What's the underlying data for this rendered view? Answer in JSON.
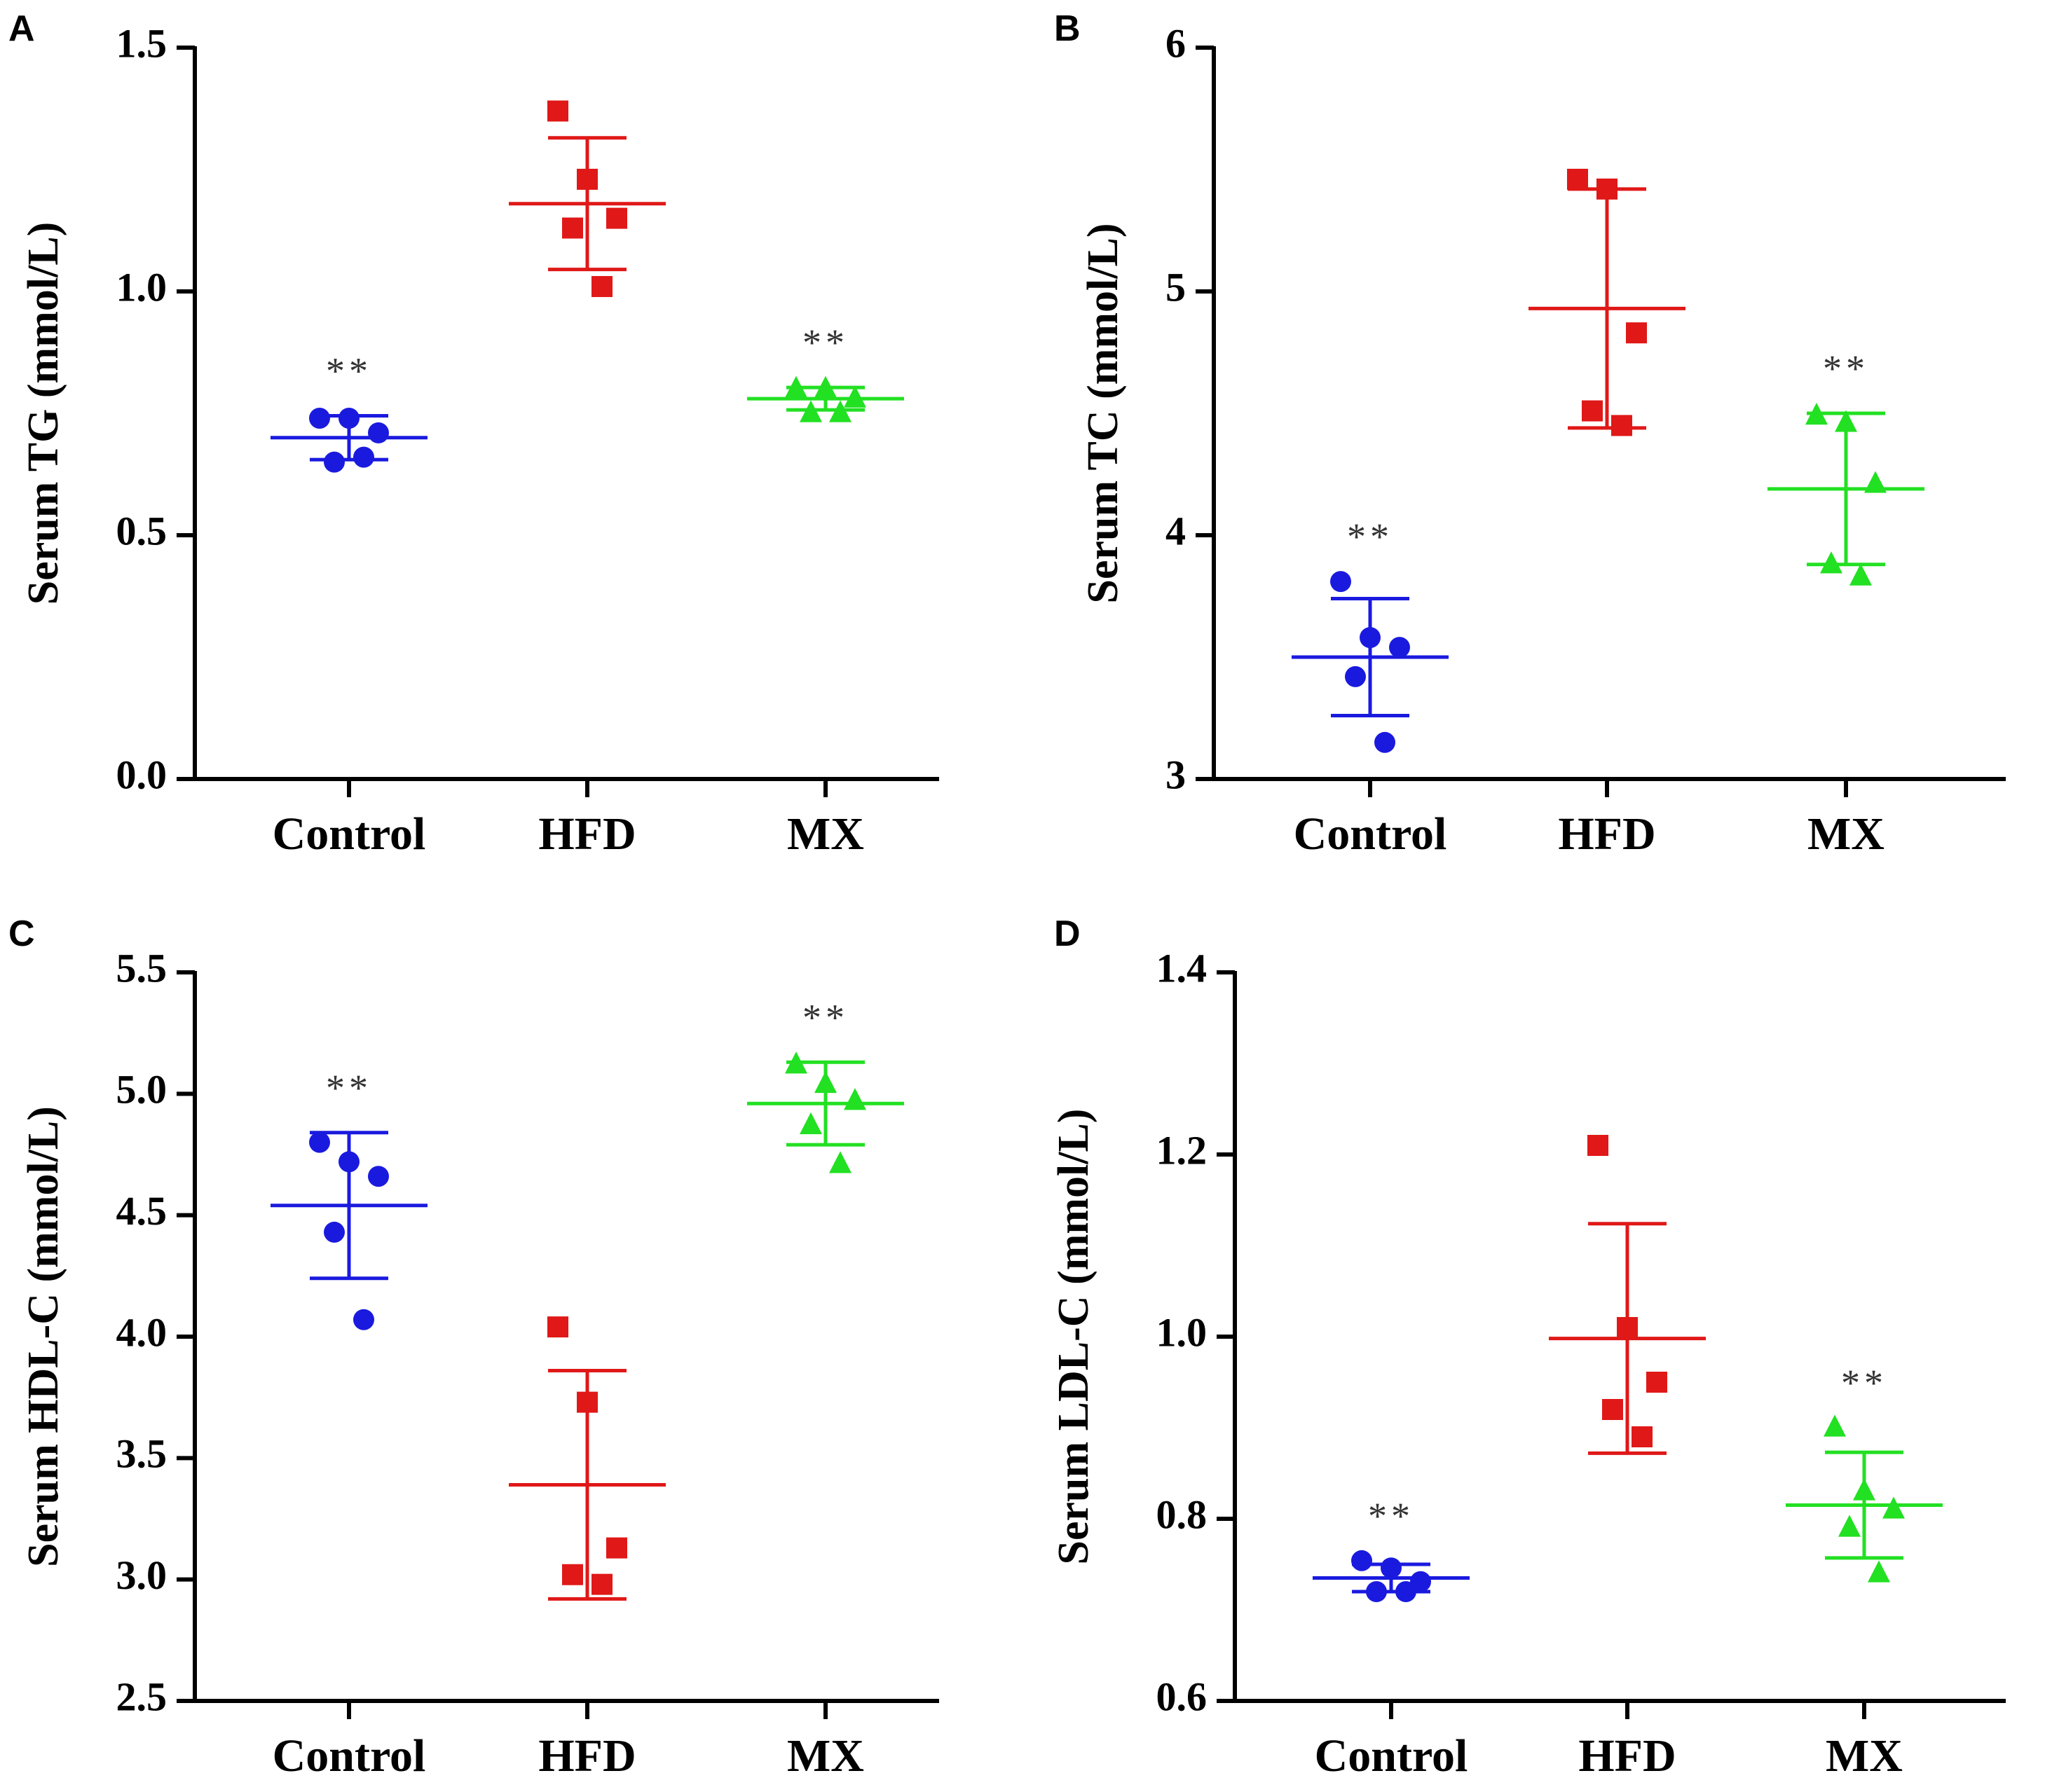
{
  "chart_data": [
    {
      "panel": "A",
      "type": "scatter",
      "ylabel": "Serum TG (mmol/L)",
      "ylim": [
        0,
        1.5
      ],
      "yticks": [
        0.0,
        0.5,
        1.0,
        1.5
      ],
      "ytick_labels": [
        "0.0",
        "0.5",
        "1.0",
        "1.5"
      ],
      "categories": [
        "Control",
        "HFD",
        "MX"
      ],
      "groups": [
        {
          "name": "Control",
          "color": "#1a1adf",
          "marker": "circle",
          "points": [
            0.74,
            0.74,
            0.71,
            0.65,
            0.66
          ],
          "mean": 0.7,
          "sd": 0.045,
          "sig": "**"
        },
        {
          "name": "HFD",
          "color": "#e01818",
          "marker": "square",
          "points": [
            1.37,
            1.23,
            1.15,
            1.13,
            1.01
          ],
          "mean": 1.18,
          "sd": 0.135,
          "sig": ""
        },
        {
          "name": "MX",
          "color": "#22e022",
          "marker": "triangle",
          "points": [
            0.8,
            0.8,
            0.78,
            0.75,
            0.75
          ],
          "mean": 0.78,
          "sd": 0.023,
          "sig": "**"
        }
      ]
    },
    {
      "panel": "B",
      "type": "scatter",
      "ylabel": "Serum TC (mmol/L)",
      "ylim": [
        3,
        6
      ],
      "yticks": [
        3,
        4,
        5,
        6
      ],
      "ytick_labels": [
        "3",
        "4",
        "5",
        "6"
      ],
      "categories": [
        "Control",
        "HFD",
        "MX"
      ],
      "groups": [
        {
          "name": "Control",
          "color": "#1a1adf",
          "marker": "circle",
          "points": [
            3.81,
            3.58,
            3.54,
            3.42,
            3.15
          ],
          "mean": 3.5,
          "sd": 0.24,
          "sig": "**"
        },
        {
          "name": "HFD",
          "color": "#e01818",
          "marker": "square",
          "points": [
            5.46,
            5.42,
            4.83,
            4.51,
            4.45
          ],
          "mean": 4.93,
          "sd": 0.49,
          "sig": ""
        },
        {
          "name": "MX",
          "color": "#22e022",
          "marker": "triangle",
          "points": [
            4.49,
            4.46,
            4.21,
            3.88,
            3.83
          ],
          "mean": 4.19,
          "sd": 0.31,
          "sig": "**"
        }
      ]
    },
    {
      "panel": "C",
      "type": "scatter",
      "ylabel": "Serum HDL-C (mmol/L)",
      "ylim": [
        2.5,
        5.5
      ],
      "yticks": [
        2.5,
        3.0,
        3.5,
        4.0,
        4.5,
        5.0,
        5.5
      ],
      "ytick_labels": [
        "2.5",
        "3.0",
        "3.5",
        "4.0",
        "4.5",
        "5.0",
        "5.5"
      ],
      "categories": [
        "Control",
        "HFD",
        "MX"
      ],
      "groups": [
        {
          "name": "Control",
          "color": "#1a1adf",
          "marker": "circle",
          "points": [
            4.8,
            4.72,
            4.66,
            4.43,
            4.07
          ],
          "mean": 4.54,
          "sd": 0.3,
          "sig": "**"
        },
        {
          "name": "HFD",
          "color": "#e01818",
          "marker": "square",
          "points": [
            4.04,
            3.73,
            3.13,
            3.02,
            2.98
          ],
          "mean": 3.39,
          "sd": 0.47,
          "sig": ""
        },
        {
          "name": "MX",
          "color": "#22e022",
          "marker": "triangle",
          "points": [
            5.12,
            5.04,
            4.97,
            4.87,
            4.71
          ],
          "mean": 4.96,
          "sd": 0.17,
          "sig": "**"
        }
      ]
    },
    {
      "panel": "D",
      "type": "scatter",
      "ylabel": "Serum LDL-C (mmol/L)",
      "ylim": [
        0.6,
        1.4
      ],
      "yticks": [
        0.6,
        0.8,
        1.0,
        1.2,
        1.4
      ],
      "ytick_labels": [
        "0.6",
        "0.8",
        "1.0",
        "1.2",
        "1.4"
      ],
      "categories": [
        "Control",
        "HFD",
        "MX"
      ],
      "groups": [
        {
          "name": "Control",
          "color": "#1a1adf",
          "marker": "circle",
          "points": [
            0.754,
            0.746,
            0.731,
            0.72,
            0.72
          ],
          "mean": 0.735,
          "sd": 0.015,
          "sig": "**"
        },
        {
          "name": "HFD",
          "color": "#e01818",
          "marker": "square",
          "points": [
            1.21,
            1.01,
            0.95,
            0.92,
            0.89
          ],
          "mean": 0.998,
          "sd": 0.126,
          "sig": ""
        },
        {
          "name": "MX",
          "color": "#22e022",
          "marker": "triangle",
          "points": [
            0.9,
            0.83,
            0.81,
            0.79,
            0.74
          ],
          "mean": 0.815,
          "sd": 0.058,
          "sig": "**"
        }
      ]
    }
  ]
}
